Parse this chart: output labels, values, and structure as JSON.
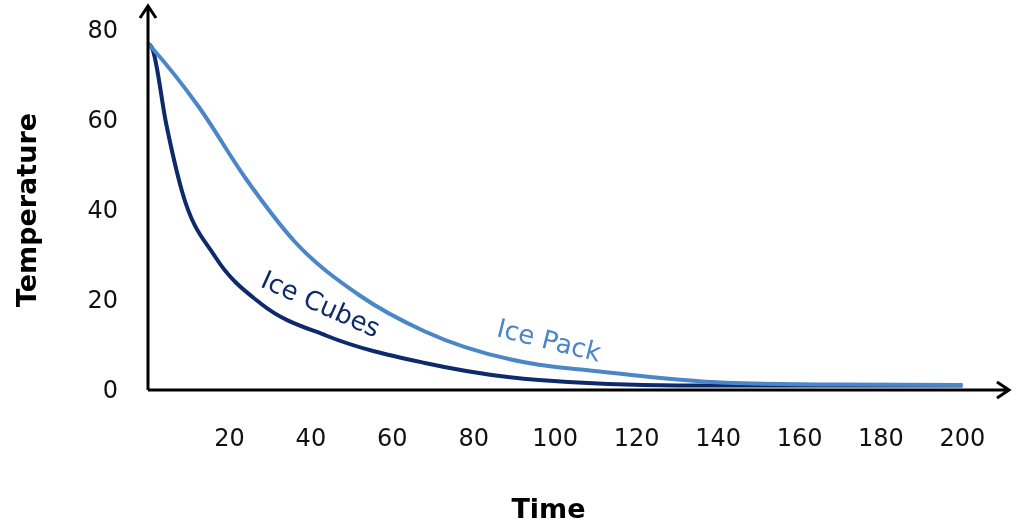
{
  "chart_data": {
    "type": "line",
    "xlabel": "Time",
    "ylabel": "Temperature",
    "xlim": [
      0,
      208
    ],
    "ylim": [
      0,
      80
    ],
    "xticks": [
      20,
      40,
      60,
      80,
      100,
      120,
      140,
      160,
      180,
      200
    ],
    "yticks": [
      0,
      20,
      40,
      60,
      80
    ],
    "grid": false,
    "marker": "none",
    "line_style": "solid",
    "series": [
      {
        "name": "Ice Cubes",
        "color": "#0d2a6b",
        "x": [
          0,
          1,
          4.5,
          8.4,
          16.5,
          28,
          44,
          68,
          96,
          130,
          160,
          200
        ],
        "values": [
          77,
          76,
          59,
          44,
          29.6,
          19,
          12,
          6,
          2.2,
          1,
          1,
          1
        ]
      },
      {
        "name": "Ice Pack",
        "color": "#4a86c8",
        "x": [
          0,
          1,
          12.4,
          24,
          36,
          52,
          68,
          96,
          107,
          142,
          170,
          200
        ],
        "values": [
          77,
          76,
          63,
          47,
          33,
          21,
          13,
          5.6,
          4.5,
          1.6,
          1.2,
          1.1
        ]
      }
    ]
  }
}
